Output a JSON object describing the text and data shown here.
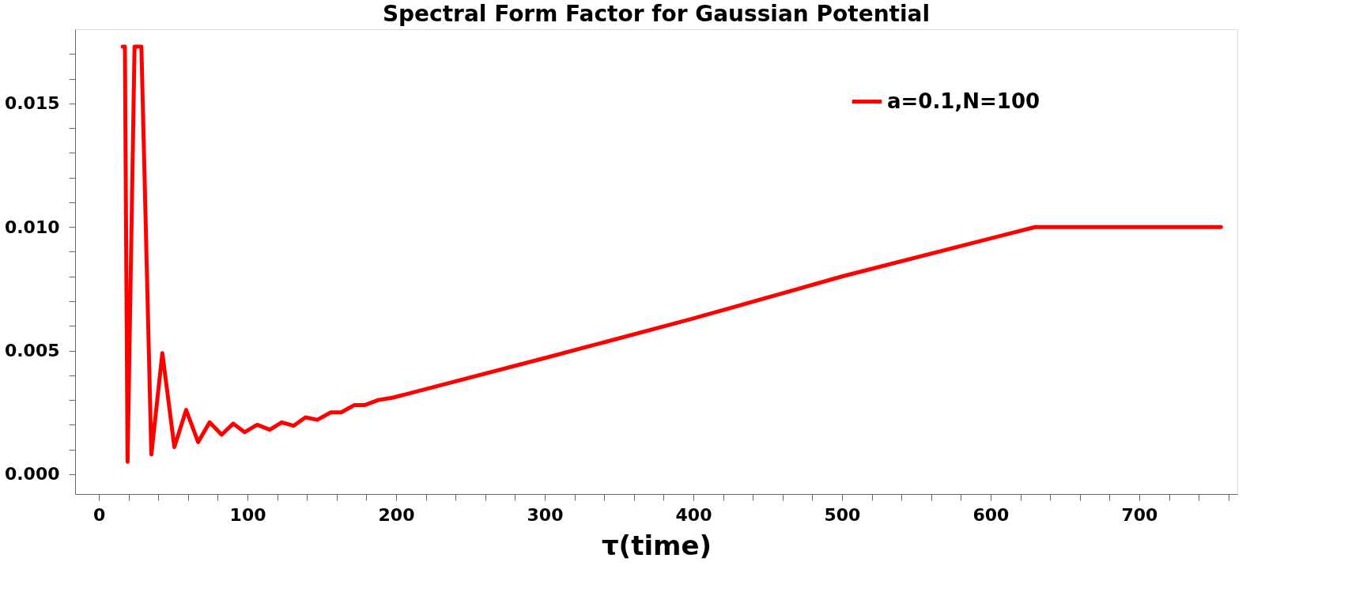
{
  "chart_data": {
    "type": "line",
    "title": "Spectral Form Factor for Gaussian Potential",
    "xlabel": "τ(time)",
    "xlim": [
      -16,
      766
    ],
    "ylim": [
      -0.0008,
      0.018
    ],
    "xticks": [
      0,
      {
        "value": 20,
        "label": null
      },
      {
        "value": 40,
        "label": null
      },
      {
        "value": 60,
        "label": null
      },
      {
        "value": 80,
        "label": null
      },
      100,
      {
        "value": 120,
        "label": null
      },
      {
        "value": 140,
        "label": null
      },
      {
        "value": 160,
        "label": null
      },
      {
        "value": 180,
        "label": null
      },
      200,
      {
        "value": 220,
        "label": null
      },
      {
        "value": 240,
        "label": null
      },
      {
        "value": 260,
        "label": null
      },
      {
        "value": 280,
        "label": null
      },
      300,
      {
        "value": 320,
        "label": null
      },
      {
        "value": 340,
        "label": null
      },
      {
        "value": 360,
        "label": null
      },
      {
        "value": 380,
        "label": null
      },
      400,
      {
        "value": 420,
        "label": null
      },
      {
        "value": 440,
        "label": null
      },
      {
        "value": 460,
        "label": null
      },
      {
        "value": 480,
        "label": null
      },
      500,
      {
        "value": 520,
        "label": null
      },
      {
        "value": 540,
        "label": null
      },
      {
        "value": 560,
        "label": null
      },
      {
        "value": 580,
        "label": null
      },
      600,
      {
        "value": 620,
        "label": null
      },
      {
        "value": 640,
        "label": null
      },
      {
        "value": 660,
        "label": null
      },
      {
        "value": 680,
        "label": null
      },
      700,
      {
        "value": 720,
        "label": null
      },
      {
        "value": 740,
        "label": null
      },
      {
        "value": 760,
        "label": null
      }
    ],
    "yticks": [
      {
        "value": 0.0,
        "label": "0.000"
      },
      {
        "value": 0.001,
        "label": null
      },
      {
        "value": 0.002,
        "label": null
      },
      {
        "value": 0.003,
        "label": null
      },
      {
        "value": 0.004,
        "label": null
      },
      {
        "value": 0.005,
        "label": "0.005"
      },
      {
        "value": 0.006,
        "label": null
      },
      {
        "value": 0.007,
        "label": null
      },
      {
        "value": 0.008,
        "label": null
      },
      {
        "value": 0.009,
        "label": null
      },
      {
        "value": 0.01,
        "label": "0.010"
      },
      {
        "value": 0.011,
        "label": null
      },
      {
        "value": 0.012,
        "label": null
      },
      {
        "value": 0.013,
        "label": null
      },
      {
        "value": 0.014,
        "label": null
      },
      {
        "value": 0.015,
        "label": "0.015"
      },
      {
        "value": 0.016,
        "label": null
      },
      {
        "value": 0.017,
        "label": null
      }
    ],
    "grid": false,
    "legend": "top right",
    "marker": "none",
    "line_style": "solid",
    "series": [
      {
        "name": "a=0.1,N=100",
        "color": "#ff0000",
        "x": [
          16,
          17.5,
          19.3,
          24,
          28.6,
          35.3,
          42.7,
          50.8,
          58.7,
          66.8,
          74.5,
          82.6,
          90.4,
          98,
          106.5,
          115,
          123,
          131,
          139,
          147,
          156,
          163,
          172,
          179,
          188,
          198,
          300,
          400,
          500,
          630,
          755
        ],
        "values": [
          0.0173,
          0.0173,
          0.0005,
          0.0173,
          0.0173,
          0.0008,
          0.0049,
          0.0011,
          0.0026,
          0.0013,
          0.0021,
          0.0016,
          0.00205,
          0.0017,
          0.002,
          0.0018,
          0.0021,
          0.00196,
          0.0023,
          0.0022,
          0.0025,
          0.0025,
          0.0028,
          0.0028,
          0.003,
          0.0031,
          0.0047,
          0.0063,
          0.008,
          0.01,
          0.01
        ]
      }
    ]
  }
}
